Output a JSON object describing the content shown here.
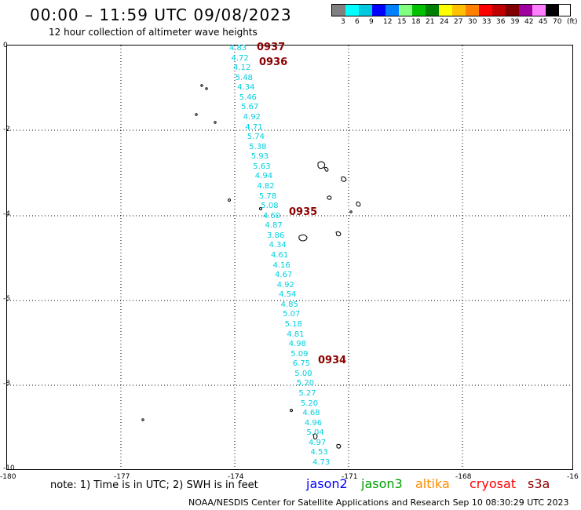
{
  "header": {
    "title": "00:00 – 11:59 UTC 09/08/2023",
    "subtitle": "12 hour collection of altimeter wave heights"
  },
  "legend": {
    "colors": [
      "#808080",
      "#00ffff",
      "#00c8e0",
      "#0000ff",
      "#0080ff",
      "#80ff80",
      "#00c000",
      "#008000",
      "#ffff00",
      "#ffc000",
      "#ff8000",
      "#ff0000",
      "#c00000",
      "#800000",
      "#a000a0",
      "#ff80ff",
      "#000000"
    ],
    "ticks": [
      "3",
      "6",
      "9",
      "12",
      "15",
      "18",
      "21",
      "24",
      "27",
      "30",
      "33",
      "36",
      "39",
      "42",
      "45",
      "70",
      "(ft)"
    ]
  },
  "axes": {
    "y_ticks": [
      "0",
      "-2",
      "-4",
      "-6",
      "-8",
      "-10"
    ],
    "x_ticks": [
      "-180",
      "-177",
      "-174",
      "-171",
      "-168",
      "-16"
    ]
  },
  "swh_values": [
    "4.83",
    "4.72",
    "4.12",
    "5.48",
    "4.34",
    "5.46",
    "5.67",
    "4.92",
    "4.71",
    "5.74",
    "5.38",
    "5.93",
    "5.63",
    "4.94",
    "4.82",
    "5.78",
    "5.08",
    "4.60",
    "4.87",
    "3.86",
    "4.34",
    "4.61",
    "4.16",
    "4.67",
    "4.92",
    "4.54",
    "4.85",
    "5.07",
    "5.18",
    "4.81",
    "4.98",
    "5.09",
    "6.75",
    "5.00",
    "5.20",
    "5.27",
    "5.20",
    "4.68",
    "4.96",
    "5.04",
    "4.97",
    "4.53",
    "4.73"
  ],
  "pass_times": [
    "0937",
    "0936",
    "0935",
    "0934"
  ],
  "footer": {
    "note": "note: 1) Time is in UTC; 2) SWH is in feet",
    "missions": [
      {
        "name": "jason2",
        "color": "#0000ff"
      },
      {
        "name": "jason3",
        "color": "#00a000"
      },
      {
        "name": "altika",
        "color": "#ff8c00"
      },
      {
        "name": "cryosat",
        "color": "#ff0000"
      },
      {
        "name": "s3a",
        "color": "#8b0000"
      }
    ],
    "credit": "NOAA/NESDIS Center for Satellite Applications and Research   Sep 10 08:30:29 UTC 2023"
  }
}
